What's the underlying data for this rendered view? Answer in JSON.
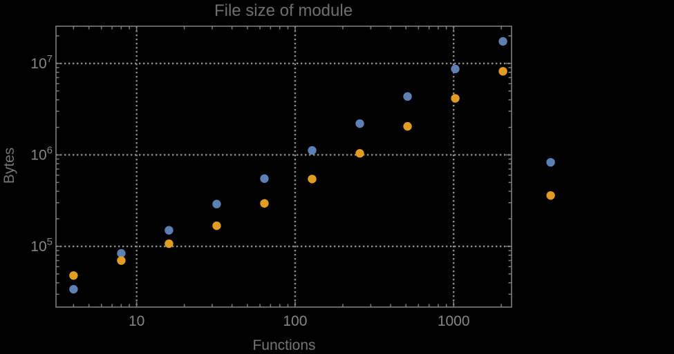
{
  "chart_data": {
    "type": "scatter",
    "title": "File size of module",
    "xlabel": "Functions",
    "ylabel": "Bytes",
    "xscale": "log",
    "yscale": "log",
    "xlim": [
      3.1,
      2320
    ],
    "ylim": [
      21700,
      25500000
    ],
    "grid": "dotted",
    "grid_color": "#8f8f8f",
    "frame_color": "#7e7e7e",
    "text_color": "#868686",
    "legend": null,
    "clip_points": false,
    "xticks": [
      10,
      100,
      1000
    ],
    "xtick_labels": [
      "10",
      "100",
      "1000"
    ],
    "yticks": [
      100000,
      1000000,
      10000000
    ],
    "ytick_labels": [
      {
        "base": "10",
        "exp": "5"
      },
      {
        "base": "10",
        "exp": "6"
      },
      {
        "base": "10",
        "exp": "7"
      }
    ],
    "x": [
      4,
      8,
      16,
      32,
      64,
      128,
      256,
      512,
      1024,
      2048,
      4096
    ],
    "series": [
      {
        "name": "series-1-blue",
        "color": "#5E81B5",
        "values": [
          34000,
          84000,
          150000,
          290000,
          550000,
          1120000,
          2200000,
          4350000,
          8700000,
          17400000,
          830000
        ]
      },
      {
        "name": "series-2-orange",
        "color": "#E19C24",
        "values": [
          48000,
          70000,
          107000,
          168000,
          295000,
          545000,
          1040000,
          2050000,
          4150000,
          8200000,
          360000
        ]
      }
    ]
  }
}
